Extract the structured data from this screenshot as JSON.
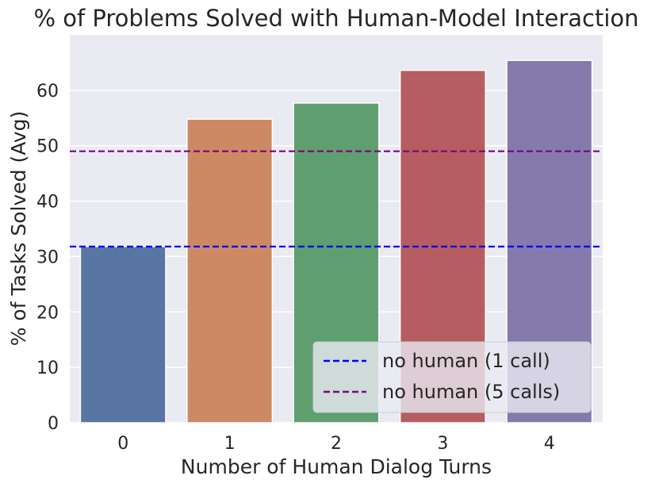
{
  "chart_data": {
    "type": "bar",
    "title": "% of Problems Solved with Human-Model Interaction",
    "xlabel": "Number of Human Dialog Turns",
    "ylabel": "% of Tasks Solved (Avg)",
    "categories": [
      "0",
      "1",
      "2",
      "3",
      "4"
    ],
    "values": [
      31.8,
      54.8,
      57.7,
      63.6,
      65.4
    ],
    "bar_colors": [
      "#5975a4",
      "#cc8963",
      "#5f9e6e",
      "#b55d60",
      "#857aab"
    ],
    "ylim": [
      0,
      70
    ],
    "yticks": [
      0,
      10,
      20,
      30,
      40,
      50,
      60
    ],
    "grid": true,
    "background": "#eaeaf2",
    "reference_lines": [
      {
        "name": "no human (1 call)",
        "value": 31.8,
        "color": "#0000ff",
        "style": "dashed"
      },
      {
        "name": "no human (5 calls)",
        "value": 49.0,
        "color": "#800080",
        "style": "dashed"
      }
    ],
    "legend_position": "lower-right"
  }
}
